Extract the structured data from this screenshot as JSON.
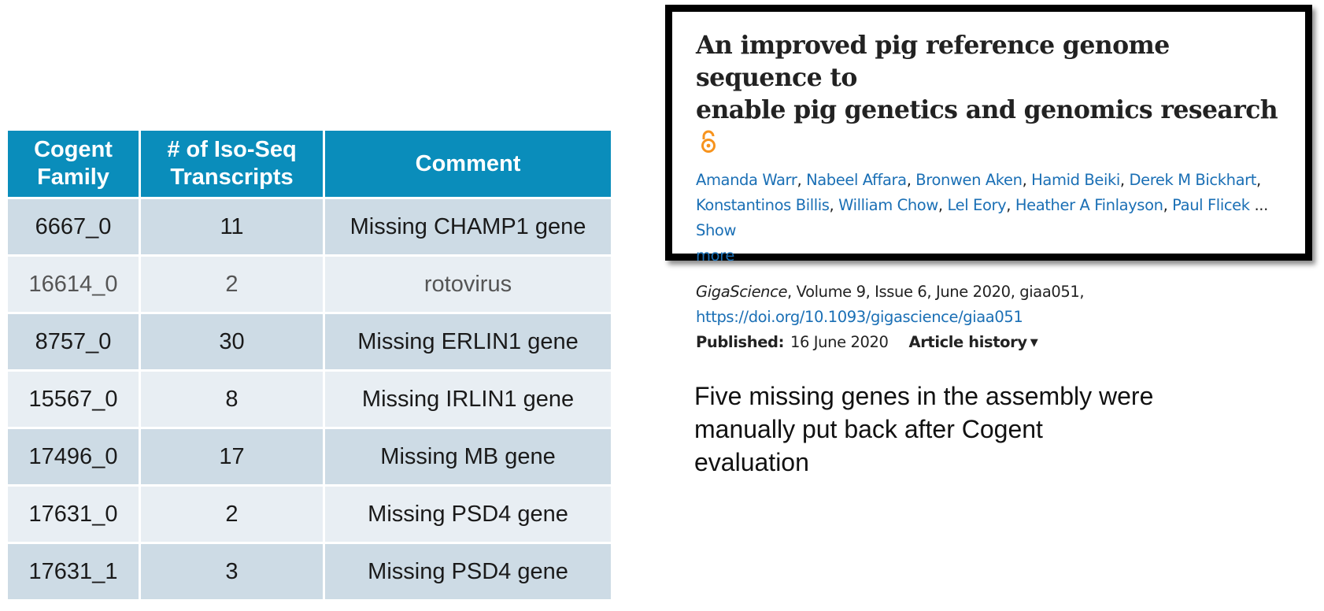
{
  "table": {
    "headers": [
      "Cogent\nFamily",
      "# of Iso-Seq\nTranscripts",
      "Comment"
    ],
    "header_lines": [
      [
        "Cogent",
        "Family"
      ],
      [
        "# of Iso-Seq",
        "Transcripts"
      ],
      [
        "Comment"
      ]
    ],
    "rows": [
      {
        "family": "6667_0",
        "transcripts": "11",
        "comment": "Missing CHAMP1 gene"
      },
      {
        "family": "16614_0",
        "transcripts": "2",
        "comment": "rotovirus"
      },
      {
        "family": "8757_0",
        "transcripts": "30",
        "comment": "Missing ERLIN1 gene"
      },
      {
        "family": "15567_0",
        "transcripts": "8",
        "comment": "Missing IRLIN1 gene"
      },
      {
        "family": "17496_0",
        "transcripts": "17",
        "comment": "Missing MB gene"
      },
      {
        "family": "17631_0",
        "transcripts": "2",
        "comment": "Missing PSD4 gene"
      },
      {
        "family": "17631_1",
        "transcripts": "3",
        "comment": "Missing PSD4 gene"
      }
    ],
    "colors": {
      "header_bg": "#0a8dbb",
      "row_dark": "#cddbe5",
      "row_light": "#e8eef3"
    }
  },
  "article": {
    "title_line1": "An improved pig reference genome sequence to",
    "title_line2": "enable pig genetics and genomics research",
    "open_access_icon": "open-access-lock-icon",
    "authors": [
      "Amanda Warr",
      "Nabeel Affara",
      "Bronwen Aken",
      "Hamid Beiki",
      "Derek M Bickhart",
      "Konstantinos Billis",
      "William Chow",
      "Lel Eory",
      "Heather A Finlayson",
      "Paul Flicek"
    ],
    "ellipsis": "...",
    "show_more_part1": "Show",
    "show_more_part2": "more",
    "journal": "GigaScience",
    "citation_rest": ", Volume 9, Issue 6, June 2020, giaa051,",
    "doi": "https://doi.org/10.1093/gigascience/giaa051",
    "published_label": "Published:",
    "published_date": "16 June 2020",
    "history_label": "Article history",
    "history_caret": "▼",
    "link_color": "#1a6fb5",
    "oa_color": "#f7931d"
  },
  "note": {
    "line1": "Five missing genes in the assembly were",
    "line2": "manually put back after Cogent",
    "line3": "evaluation"
  }
}
